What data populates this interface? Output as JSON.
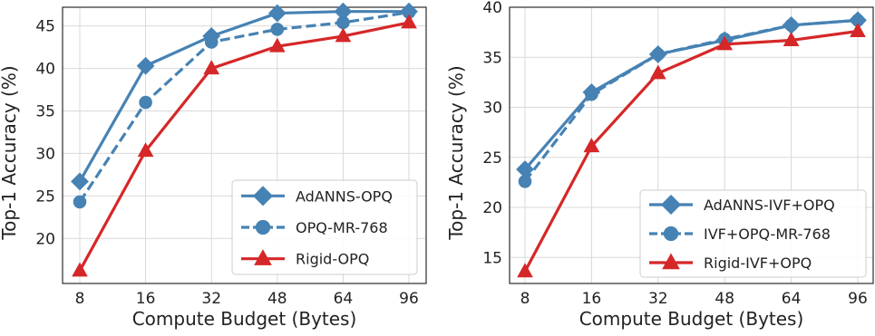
{
  "chart_data": [
    {
      "type": "line",
      "categories": [
        "8",
        "16",
        "32",
        "48",
        "64",
        "96"
      ],
      "xlabel": "Compute Budget (Bytes)",
      "ylabel": "Top-1 Accuracy (%)",
      "ylim": [
        14.7,
        47.2
      ],
      "yticks": [
        20,
        25,
        30,
        35,
        40,
        45
      ],
      "grid": true,
      "legend_position": "bottom-right",
      "series": [
        {
          "name": "AdANNS-OPQ",
          "values": [
            26.7,
            40.3,
            43.8,
            46.5,
            46.7,
            46.7
          ],
          "color": "#4682b4",
          "marker": "diamond",
          "dash": "solid"
        },
        {
          "name": "OPQ-MR-768",
          "values": [
            24.3,
            36.0,
            43.1,
            44.6,
            45.4,
            46.6
          ],
          "color": "#4682b4",
          "marker": "circle",
          "dash": "dashed"
        },
        {
          "name": "Rigid-OPQ",
          "values": [
            16.2,
            30.3,
            40.0,
            42.6,
            43.8,
            45.4
          ],
          "color": "#d62728",
          "marker": "triangle",
          "dash": "solid"
        }
      ]
    },
    {
      "type": "line",
      "categories": [
        "8",
        "16",
        "32",
        "48",
        "64",
        "96"
      ],
      "xlabel": "Compute Budget (Bytes)",
      "ylabel": "Top-1 Accuracy (%)",
      "ylim": [
        12.4,
        40.0
      ],
      "yticks": [
        15,
        20,
        25,
        30,
        35,
        40
      ],
      "grid": true,
      "legend_position": "bottom-right",
      "series": [
        {
          "name": "AdANNS-IVF+OPQ",
          "values": [
            23.8,
            31.5,
            35.3,
            36.7,
            38.2,
            38.7
          ],
          "color": "#4682b4",
          "marker": "diamond",
          "dash": "solid"
        },
        {
          "name": "IVF+OPQ-MR-768",
          "values": [
            22.6,
            31.3,
            35.3,
            36.8,
            38.2,
            38.7
          ],
          "color": "#4682b4",
          "marker": "circle",
          "dash": "dashed"
        },
        {
          "name": "Rigid-IVF+OPQ",
          "values": [
            13.6,
            26.1,
            33.4,
            36.3,
            36.7,
            37.6
          ],
          "color": "#d62728",
          "marker": "triangle",
          "dash": "solid"
        }
      ]
    }
  ]
}
